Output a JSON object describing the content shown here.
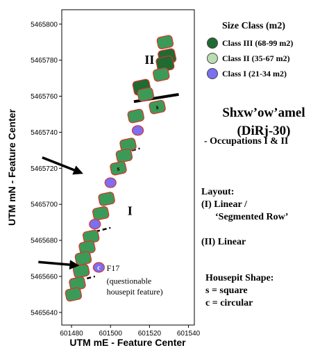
{
  "chart_data": {
    "type": "scatter",
    "title": "",
    "xlabel": "UTM mE - Feature Center",
    "ylabel": "UTM mN - Feature Center",
    "xlim": [
      601475,
      601543
    ],
    "ylim": [
      5465633,
      5465808
    ],
    "x_ticks": [
      "601480",
      "601500",
      "601520",
      "601540"
    ],
    "y_ticks": [
      "5465640",
      "5465660",
      "5465680",
      "5465700",
      "5465720",
      "5465740",
      "5465760",
      "5465780",
      "5465800"
    ],
    "grid": false,
    "legend": {
      "title": "Size Class (m2)",
      "position": "right",
      "items": [
        {
          "label": "Class III (68-99 m2)",
          "color": "#1f6b32"
        },
        {
          "label": "Class II (35-67 m2)",
          "color": "#b9dcb0"
        },
        {
          "label": "Class I (21-34 m2)",
          "color": "#7b6ff2"
        }
      ]
    },
    "point_style": {
      "fill_class_III": "#1f6b32",
      "fill_class_II": "#3c9a58",
      "fill_class_I": "#7b6ff2",
      "outline": "#d8342c"
    },
    "points": [
      {
        "x": 601528,
        "y": 5465790,
        "class": "II",
        "shape": ""
      },
      {
        "x": 601529,
        "y": 5465782,
        "class": "III",
        "shape": ""
      },
      {
        "x": 601528,
        "y": 5465778,
        "class": "III",
        "shape": ""
      },
      {
        "x": 601526,
        "y": 5465772,
        "class": "II",
        "shape": ""
      },
      {
        "x": 601516,
        "y": 5465765,
        "class": "III",
        "shape": ""
      },
      {
        "x": 601518,
        "y": 5465761,
        "class": "II",
        "shape": ""
      },
      {
        "x": 601524,
        "y": 5465754,
        "class": "II",
        "shape": "s"
      },
      {
        "x": 601513,
        "y": 5465749,
        "class": "II",
        "shape": ""
      },
      {
        "x": 601514,
        "y": 5465741,
        "class": "I",
        "shape": ""
      },
      {
        "x": 601509,
        "y": 5465733,
        "class": "II",
        "shape": ""
      },
      {
        "x": 601507,
        "y": 5465727,
        "class": "II",
        "shape": ""
      },
      {
        "x": 601504,
        "y": 5465720,
        "class": "II",
        "shape": "s"
      },
      {
        "x": 601500,
        "y": 5465712,
        "class": "I",
        "shape": ""
      },
      {
        "x": 601498,
        "y": 5465703,
        "class": "II",
        "shape": ""
      },
      {
        "x": 601495,
        "y": 5465695,
        "class": "II",
        "shape": ""
      },
      {
        "x": 601492,
        "y": 5465689,
        "class": "I",
        "shape": ""
      },
      {
        "x": 601490,
        "y": 5465682,
        "class": "II",
        "shape": ""
      },
      {
        "x": 601488,
        "y": 5465676,
        "class": "II",
        "shape": ""
      },
      {
        "x": 601486,
        "y": 5465670,
        "class": "II",
        "shape": ""
      },
      {
        "x": 601485,
        "y": 5465663,
        "class": "II",
        "shape": ""
      },
      {
        "x": 601494,
        "y": 5465665,
        "class": "I",
        "shape": "c"
      },
      {
        "x": 601483,
        "y": 5465656,
        "class": "II",
        "shape": ""
      },
      {
        "x": 601481,
        "y": 5465650,
        "class": "II",
        "shape": ""
      }
    ],
    "boundaries": [
      {
        "x1": 601512,
        "y1": 5465757,
        "x2": 601535,
        "y2": 5465761,
        "style": "solid"
      },
      {
        "x1": 601504,
        "y1": 5465728,
        "x2": 601515,
        "y2": 5465731,
        "style": "dashed"
      },
      {
        "x1": 601489,
        "y1": 5465684,
        "x2": 601500,
        "y2": 5465687,
        "style": "dashed"
      },
      {
        "x1": 601481,
        "y1": 5465657,
        "x2": 601492,
        "y2": 5465660,
        "style": "dashed"
      }
    ],
    "annotations": [
      {
        "text": "II",
        "x": 601520,
        "y": 5465778
      },
      {
        "text": "I",
        "x": 601510,
        "y": 5465694
      },
      {
        "text": "F17",
        "x": 601498,
        "y": 5465663
      },
      {
        "text": "(questionable",
        "x": 601498,
        "y": 5465656
      },
      {
        "text": "housepit feature)",
        "x": 601498,
        "y": 5465650
      }
    ],
    "arrows": [
      {
        "from_x": 601465,
        "from_y": 5465726,
        "to_x": 601486,
        "to_y": 5465717
      },
      {
        "from_x": 601463,
        "from_y": 5465668,
        "to_x": 601484,
        "to_y": 5465666
      }
    ]
  },
  "info": {
    "site_name_line1": "Shxw’ow’amel",
    "site_name_line2": "(DiRj-30)",
    "occupations": "- Occupations I & II",
    "layout_title": "Layout:",
    "layout_line1": "(I) Linear /",
    "layout_line2": "‘Segmented Row’",
    "layout_line3": "(II) Linear",
    "shape_title": "Housepit Shape:",
    "shape_line1": "s = square",
    "shape_line2": "c = circular"
  }
}
